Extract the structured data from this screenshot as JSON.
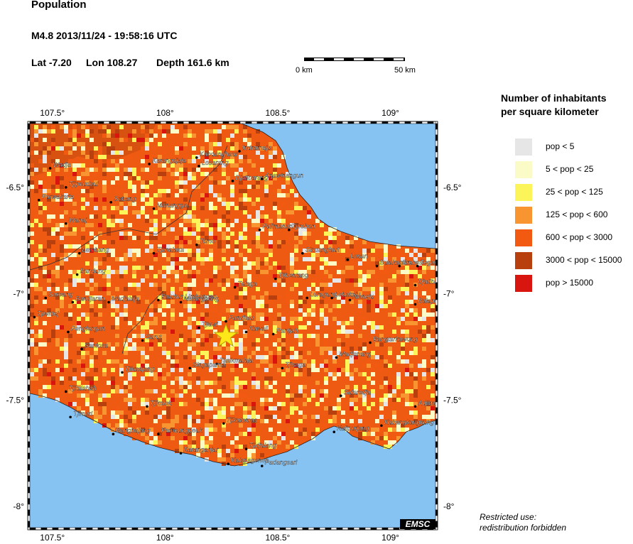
{
  "header": {
    "title": "Population",
    "event": "M4.8  2013/11/24 - 19:58:16 UTC",
    "lat": "Lat -7.20",
    "lon": "Lon 108.27",
    "depth": "Depth 161.6 km"
  },
  "scale_bar": {
    "start_label": "0 km",
    "end_label": "50 km"
  },
  "axes": {
    "lon_ticks": [
      "107.5°",
      "108°",
      "108.5°",
      "109°"
    ],
    "lat_ticks": [
      "-6.5°",
      "-7°",
      "-7.5°",
      "-8°"
    ]
  },
  "legend": {
    "title_line1": "Number of inhabitants",
    "title_line2": "per square kilometer",
    "items": [
      {
        "label": "pop < 5",
        "color": "#e6e6e6"
      },
      {
        "label": "5 < pop < 25",
        "color": "#fbfbc8"
      },
      {
        "label": "25 < pop < 125",
        "color": "#fbf55a"
      },
      {
        "label": "125 < pop < 600",
        "color": "#f99530"
      },
      {
        "label": "600 < pop < 3000",
        "color": "#f25a12"
      },
      {
        "label": "3000 < pop < 15000",
        "color": "#b8400f"
      },
      {
        "label": "pop > 15000",
        "color": "#d8150f"
      }
    ]
  },
  "epicenter": {
    "lat": -7.2,
    "lon": 108.27,
    "symbol": "star-icon",
    "color": "#ffe81a"
  },
  "cities": [
    {
      "name": "Indramaju",
      "lon": 108.33,
      "lat": -6.33
    },
    {
      "name": "Kandanghaur",
      "lon": 108.14,
      "lat": -6.36
    },
    {
      "name": "Karangdjaja",
      "lon": 107.93,
      "lat": -6.39
    },
    {
      "name": "Losarang",
      "lon": 108.15,
      "lat": -6.4
    },
    {
      "name": "Wadja",
      "lon": 107.49,
      "lat": -6.41
    },
    {
      "name": "Djatibarang",
      "lon": 108.3,
      "lat": -6.47
    },
    {
      "name": "Arjawinangun",
      "lon": 108.43,
      "lat": -6.46
    },
    {
      "name": "Tjipeudeui",
      "lon": 107.56,
      "lat": -6.5
    },
    {
      "name": "Purwakarta",
      "lon": 107.44,
      "lat": -6.56
    },
    {
      "name": "Subang",
      "lon": 107.76,
      "lat": -6.57
    },
    {
      "name": "Manangga",
      "lon": 107.95,
      "lat": -6.6
    },
    {
      "name": "Wanaj",
      "lon": 107.56,
      "lat": -6.67
    },
    {
      "name": "Palimanan",
      "lon": 108.42,
      "lat": -6.7
    },
    {
      "name": "Tjirebon",
      "lon": 108.55,
      "lat": -6.7
    },
    {
      "name": "Lembang",
      "lon": 107.62,
      "lat": -6.81
    },
    {
      "name": "Tjimalaka",
      "lon": 107.95,
      "lat": -6.81
    },
    {
      "name": "Tomo",
      "lon": 108.14,
      "lat": -6.77
    },
    {
      "name": "Sindanglaut",
      "lon": 108.61,
      "lat": -6.81
    },
    {
      "name": "Losari",
      "lon": 108.81,
      "lat": -6.84
    },
    {
      "name": "Bulakamba",
      "lon": 108.94,
      "lat": -6.87
    },
    {
      "name": "Brebes",
      "lon": 109.04,
      "lat": -6.87
    },
    {
      "name": "Tegal",
      "lon": 109.12,
      "lat": -6.87
    },
    {
      "name": "Bandung",
      "lon": 107.61,
      "lat": -6.91
    },
    {
      "name": "Tjibentang",
      "lon": 108.49,
      "lat": -6.93
    },
    {
      "name": "Djatibarang",
      "lon": 109.11,
      "lat": -6.96
    },
    {
      "name": "Telaga",
      "lon": 108.31,
      "lat": -6.97
    },
    {
      "name": "Sareang",
      "lon": 107.47,
      "lat": -7.02
    },
    {
      "name": "Bandjaran",
      "lon": 107.59,
      "lat": -7.04
    },
    {
      "name": "Madjalaja",
      "lon": 107.75,
      "lat": -7.04
    },
    {
      "name": "Balubur Limbangan",
      "lon": 107.97,
      "lat": -7.03
    },
    {
      "name": "Malangbong",
      "lon": 108.07,
      "lat": -7.04
    },
    {
      "name": "Luragung",
      "lon": 108.63,
      "lat": -7.02
    },
    {
      "name": "Lebaksiu",
      "lon": 108.74,
      "lat": -7.02
    },
    {
      "name": "Moneju",
      "lon": 108.82,
      "lat": -7.03
    },
    {
      "name": "Balapulang",
      "lon": 109.11,
      "lat": -7.05
    },
    {
      "name": "Tjiwidej",
      "lon": 107.42,
      "lat": -7.11
    },
    {
      "name": "Pandjalu",
      "lon": 108.27,
      "lat": -7.13
    },
    {
      "name": "Tjiawi",
      "lon": 108.15,
      "lat": -7.16
    },
    {
      "name": "Penglengan",
      "lon": 107.57,
      "lat": -7.18
    },
    {
      "name": "Kawali",
      "lon": 108.36,
      "lat": -7.18
    },
    {
      "name": "Rantjah",
      "lon": 108.48,
      "lat": -7.19
    },
    {
      "name": "Garut",
      "lon": 107.9,
      "lat": -7.22
    },
    {
      "name": "Bangtarkawung",
      "lon": 108.91,
      "lat": -7.23
    },
    {
      "name": "Santosa",
      "lon": 107.63,
      "lat": -7.26
    },
    {
      "name": "Madjenang",
      "lon": 108.76,
      "lat": -7.3
    },
    {
      "name": "Tasikmalaja",
      "lon": 108.23,
      "lat": -7.33
    },
    {
      "name": "Tjisaga",
      "lon": 108.52,
      "lat": -7.35
    },
    {
      "name": "Singaparna",
      "lon": 108.11,
      "lat": -7.35
    },
    {
      "name": "Tjikadjang",
      "lon": 107.81,
      "lat": -7.37
    },
    {
      "name": "Tjitalahab",
      "lon": 107.56,
      "lat": -7.46
    },
    {
      "name": "Sidaredja",
      "lon": 108.78,
      "lat": -7.48
    },
    {
      "name": "Tjikolok",
      "lon": 107.92,
      "lat": -7.53
    },
    {
      "name": "Adjibarang",
      "lon": 109.11,
      "lat": -7.53
    },
    {
      "name": "Tjimari",
      "lon": 107.58,
      "lat": -7.58
    },
    {
      "name": "Tjikatomas",
      "lon": 108.26,
      "lat": -7.61
    },
    {
      "name": "Kubangkangkung",
      "lon": 108.96,
      "lat": -7.62
    },
    {
      "name": "Kalipurjang",
      "lon": 108.75,
      "lat": -7.65
    },
    {
      "name": "Bangbajang",
      "lon": 107.77,
      "lat": -7.66
    },
    {
      "name": "Pameungpeuk",
      "lon": 107.97,
      "lat": -7.66
    },
    {
      "name": "Tjidjulang",
      "lon": 108.36,
      "lat": -7.73
    },
    {
      "name": "Karanganjar",
      "lon": 108.07,
      "lat": -7.75
    },
    {
      "name": "Kalapagenep",
      "lon": 108.28,
      "lat": -7.8
    },
    {
      "name": "Padangsari",
      "lon": 108.43,
      "lat": -7.81
    }
  ],
  "watermark": "EMSC",
  "notice": {
    "line1": "Restricted use:",
    "line2": "redistribution forbidden"
  }
}
